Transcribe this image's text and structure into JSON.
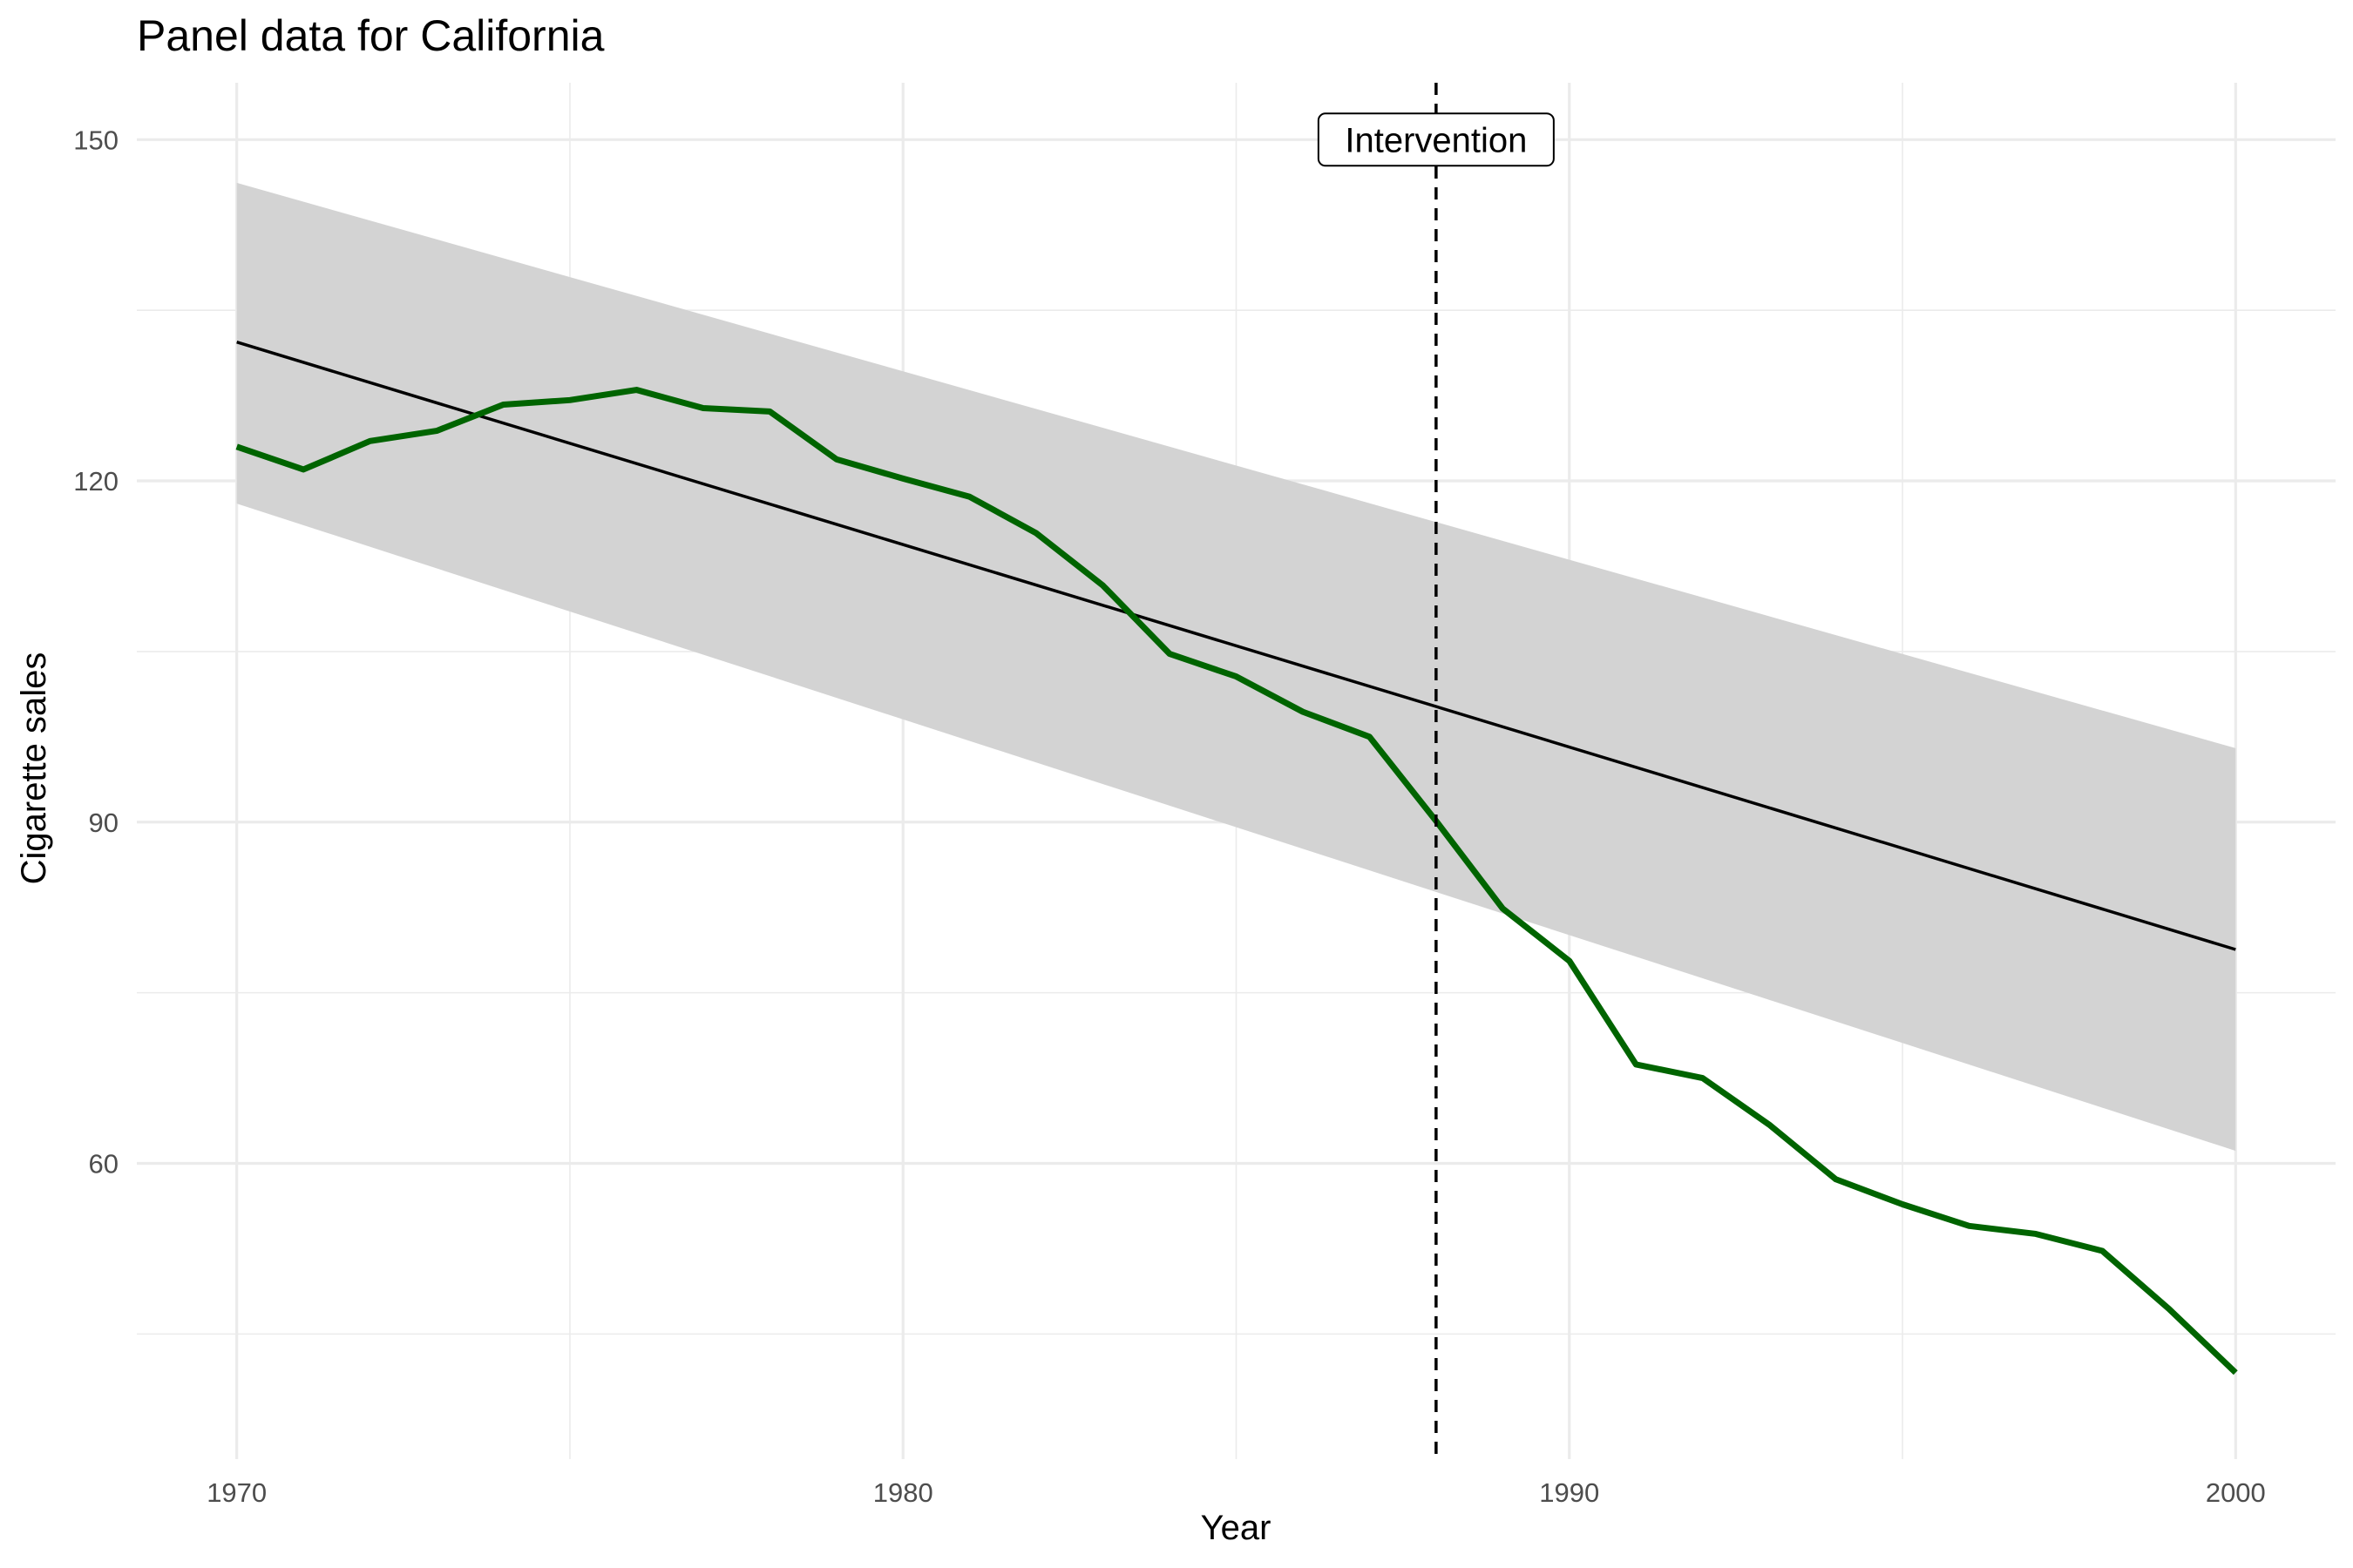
{
  "chart_data": {
    "type": "line",
    "title": "Panel data for California",
    "xlabel": "Year",
    "ylabel": "Cigarette sales",
    "xlim": [
      1968.5,
      2001.5
    ],
    "ylim": [
      34,
      155
    ],
    "x_ticks": [
      1970,
      1980,
      1990,
      2000
    ],
    "x_minor_ticks": [
      1975,
      1985,
      1995
    ],
    "y_ticks": [
      60,
      90,
      120,
      150
    ],
    "y_minor_ticks": [
      45,
      75,
      105,
      135
    ],
    "grid": true,
    "series": [
      {
        "color": "#006400",
        "x": [
          1970,
          1971,
          1972,
          1973,
          1974,
          1975,
          1976,
          1977,
          1978,
          1979,
          1980,
          1981,
          1982,
          1983,
          1984,
          1985,
          1986,
          1987,
          1988,
          1989,
          1990,
          1991,
          1992,
          1993,
          1994,
          1995,
          1996,
          1997,
          1998,
          1999,
          2000
        ],
        "y": [
          123.0,
          121.0,
          123.5,
          124.4,
          126.7,
          127.1,
          128.0,
          126.4,
          126.1,
          121.9,
          120.2,
          118.6,
          115.4,
          110.8,
          104.8,
          102.8,
          99.7,
          97.5,
          90.1,
          82.4,
          77.8,
          68.7,
          67.5,
          63.4,
          58.6,
          56.4,
          54.5,
          53.8,
          52.3,
          47.2,
          41.6
        ]
      }
    ],
    "trend_line": {
      "color": "#000000",
      "x": [
        1970,
        2000
      ],
      "y": [
        132.2,
        78.8
      ]
    },
    "confidence_band": {
      "color": "#d3d3d3",
      "x": [
        1970,
        2000
      ],
      "upper": [
        146.2,
        96.5
      ],
      "lower": [
        118.0,
        61.1
      ]
    },
    "intervention": {
      "x": 1988,
      "label": "Intervention",
      "label_y": 150
    }
  }
}
